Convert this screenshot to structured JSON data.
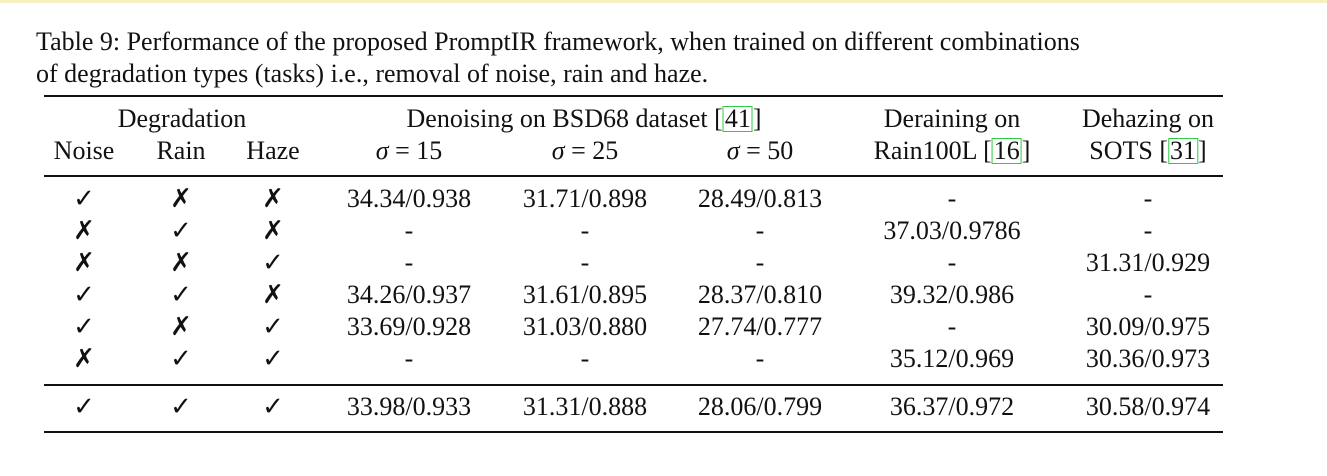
{
  "caption": {
    "line1": "Table 9: Performance of the proposed PromptIR framework, when trained on different combinations",
    "line2": "of degradation types (tasks) i.e., removal of noise, rain and haze."
  },
  "header": {
    "degradation": "Degradation",
    "noise": "Noise",
    "rain": "Rain",
    "haze": "Haze",
    "denoising_prefix": "Denoising on BSD68 dataset [",
    "denoising_ref": "41",
    "denoising_suffix": "]",
    "sigma_sym": "σ",
    "sigma15": " = 15",
    "sigma25": " = 25",
    "sigma50": " = 50",
    "deraining_line1": "Deraining on",
    "deraining_prefix": "Rain100L [",
    "deraining_ref": "16",
    "deraining_suffix": "]",
    "dehazing_line1": "Dehazing on",
    "dehazing_prefix": "SOTS [",
    "dehazing_ref": "31",
    "dehazing_suffix": "]"
  },
  "rows": [
    {
      "noise": "✓",
      "rain": "✗",
      "haze": "✗",
      "s15": "34.34/0.938",
      "s25": "31.71/0.898",
      "s50": "28.49/0.813",
      "derain": "-",
      "dehaze": "-"
    },
    {
      "noise": "✗",
      "rain": "✓",
      "haze": "✗",
      "s15": "-",
      "s25": "-",
      "s50": "-",
      "derain": "37.03/0.9786",
      "dehaze": "-"
    },
    {
      "noise": "✗",
      "rain": "✗",
      "haze": "✓",
      "s15": "-",
      "s25": "-",
      "s50": "-",
      "derain": "-",
      "dehaze": "31.31/0.929"
    },
    {
      "noise": "✓",
      "rain": "✓",
      "haze": "✗",
      "s15": "34.26/0.937",
      "s25": "31.61/0.895",
      "s50": "28.37/0.810",
      "derain": "39.32/0.986",
      "dehaze": "-"
    },
    {
      "noise": "✓",
      "rain": "✗",
      "haze": "✓",
      "s15": "33.69/0.928",
      "s25": "31.03/0.880",
      "s50": "27.74/0.777",
      "derain": "-",
      "dehaze": "30.09/0.975"
    },
    {
      "noise": "✗",
      "rain": "✓",
      "haze": "✓",
      "s15": "-",
      "s25": "-",
      "s50": "-",
      "derain": "35.12/0.969",
      "dehaze": "30.36/0.973"
    }
  ],
  "final_row": {
    "noise": "✓",
    "rain": "✓",
    "haze": "✓",
    "s15": "33.98/0.933",
    "s25": "31.31/0.888",
    "s50": "28.06/0.799",
    "derain": "36.37/0.972",
    "dehaze": "30.58/0.974"
  }
}
